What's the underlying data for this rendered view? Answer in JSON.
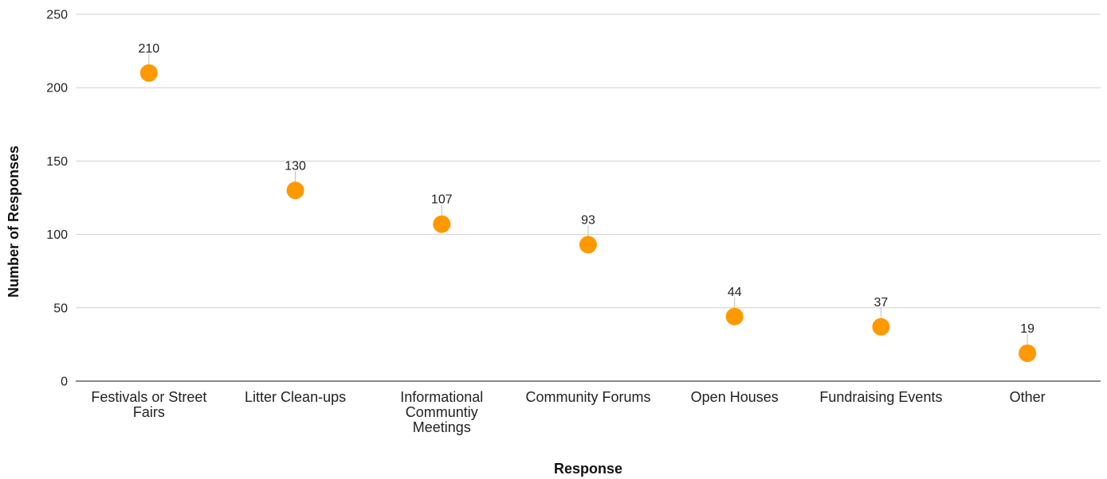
{
  "chart_data": {
    "type": "scatter",
    "title": "",
    "xlabel": "Response",
    "ylabel": "Number of Responses",
    "ylim": [
      0,
      250
    ],
    "yticks": [
      0,
      50,
      100,
      150,
      200,
      250
    ],
    "grid": true,
    "legend": "none",
    "colors": {
      "point": "#FF9900"
    },
    "categories": [
      "Festivals or Street Fairs",
      "Litter Clean-ups",
      "Informational Communtiy Meetings",
      "Community Forums",
      "Open Houses",
      "Fundraising Events",
      "Other"
    ],
    "values": [
      210,
      130,
      107,
      93,
      44,
      37,
      19
    ]
  }
}
